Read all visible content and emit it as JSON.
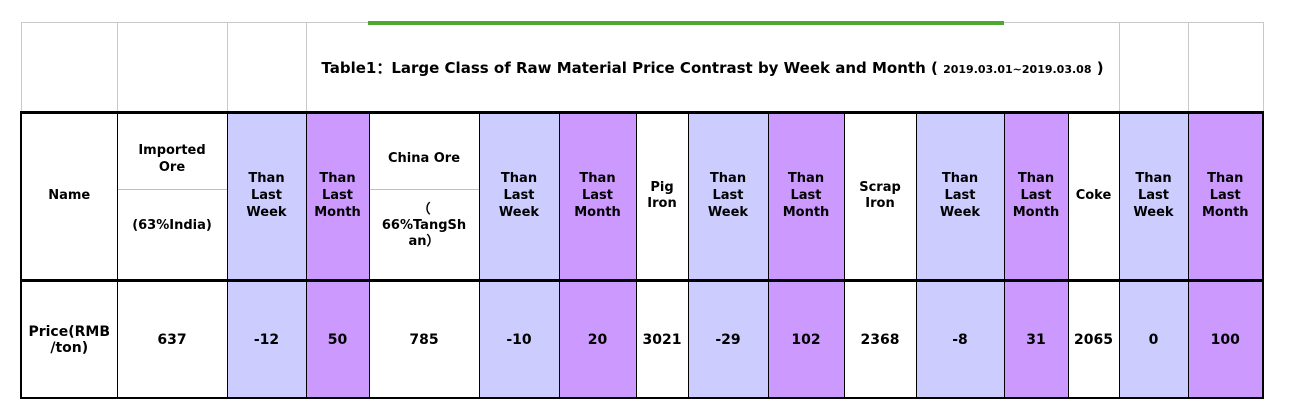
{
  "title": {
    "prefix": "Table1：Large Class of Raw Material Price Contrast by Week and Month (",
    "date_range": "2019.03.01~2019.03.08",
    "suffix": ")"
  },
  "colors": {
    "than_week_bg": "#CCCCFF",
    "than_month_bg": "#CC99FF",
    "accent_green": "#4EA72E",
    "grid_black": "#000000",
    "grid_gray": "#C9C9C9"
  },
  "headers": {
    "name": "Name",
    "than_week": "Than\nLast\nWeek",
    "than_month": "Than\nLast\nMonth"
  },
  "row_label": "Price(RMB\n/ton)",
  "materials": [
    {
      "name_top": "Imported\nOre",
      "name_bottom": "(63%India)",
      "price": "637",
      "than_week": "-12",
      "than_month": "50"
    },
    {
      "name_top": "China Ore",
      "name_bottom": "（\n66%TangSh\nan）",
      "price": "785",
      "than_week": "-10",
      "than_month": "20"
    },
    {
      "name_top": "Pig\nIron",
      "price": "3021",
      "than_week": "-29",
      "than_month": "102"
    },
    {
      "name_top": "Scrap\nIron",
      "price": "2368",
      "than_week": "-8",
      "than_month": "31"
    },
    {
      "name_top": "Coke",
      "price": "2065",
      "than_week": "0",
      "than_month": "100"
    }
  ]
}
